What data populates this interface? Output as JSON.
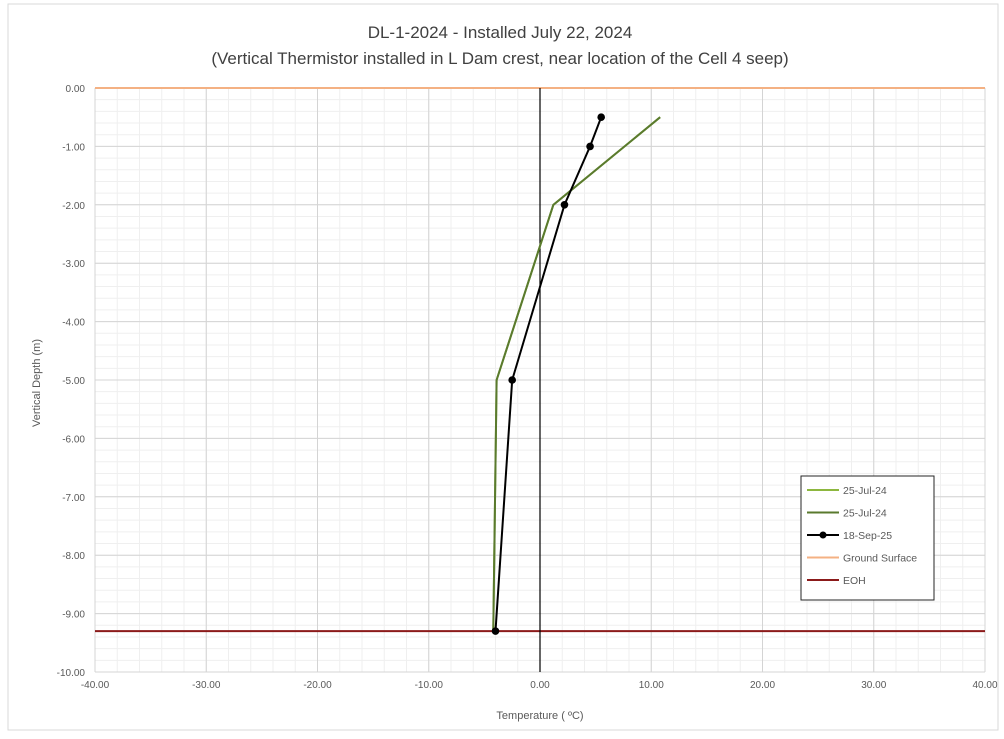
{
  "chart_data": {
    "type": "line",
    "title": "DL-1-2024 - Installed July 22, 2024",
    "subtitle": "(Vertical Thermistor installed in L Dam crest, near location of the Cell 4 seep)",
    "xlabel": "Temperature ( ºC)",
    "ylabel": "Vertical Depth (m)",
    "xlim": [
      -40,
      40
    ],
    "ylim": [
      -10,
      0
    ],
    "xticks": [
      -40,
      -30,
      -20,
      -10,
      0,
      10,
      20,
      30,
      40
    ],
    "xtick_labels": [
      "-40.00",
      "-30.00",
      "-20.00",
      "-10.00",
      "0.00",
      "10.00",
      "20.00",
      "30.00",
      "40.00"
    ],
    "yticks": [
      0,
      -1,
      -2,
      -3,
      -4,
      -5,
      -6,
      -7,
      -8,
      -9,
      -10
    ],
    "ytick_labels": [
      "0.00",
      "-1.00",
      "-2.00",
      "-3.00",
      "-4.00",
      "-5.00",
      "-6.00",
      "-7.00",
      "-8.00",
      "-9.00",
      "-10.00"
    ],
    "grid": true,
    "legend_position": "bottom-right",
    "series": [
      {
        "name": "25-Jul-24",
        "color": "#8db73f",
        "marker": "none",
        "points": [
          [
            10.8,
            -0.5
          ],
          [
            1.2,
            -2.0
          ],
          [
            -3.9,
            -5.0
          ],
          [
            -4.2,
            -9.3
          ]
        ]
      },
      {
        "name": "25-Jul-24",
        "color": "#5a7a2e",
        "marker": "none",
        "points": [
          [
            10.8,
            -0.5
          ],
          [
            1.2,
            -2.0
          ],
          [
            -3.9,
            -5.0
          ],
          [
            -4.2,
            -9.3
          ]
        ]
      },
      {
        "name": "18-Sep-25",
        "color": "#000000",
        "marker": "circle",
        "points": [
          [
            5.5,
            -0.5
          ],
          [
            4.5,
            -1.0
          ],
          [
            2.2,
            -2.0
          ],
          [
            -2.5,
            -5.0
          ],
          [
            -4.0,
            -9.3
          ]
        ]
      }
    ],
    "reference_lines": [
      {
        "name": "Ground Surface",
        "color": "#f4b183",
        "y": 0.0
      },
      {
        "name": "EOH",
        "color": "#8b1a1a",
        "y": -9.3
      }
    ]
  }
}
